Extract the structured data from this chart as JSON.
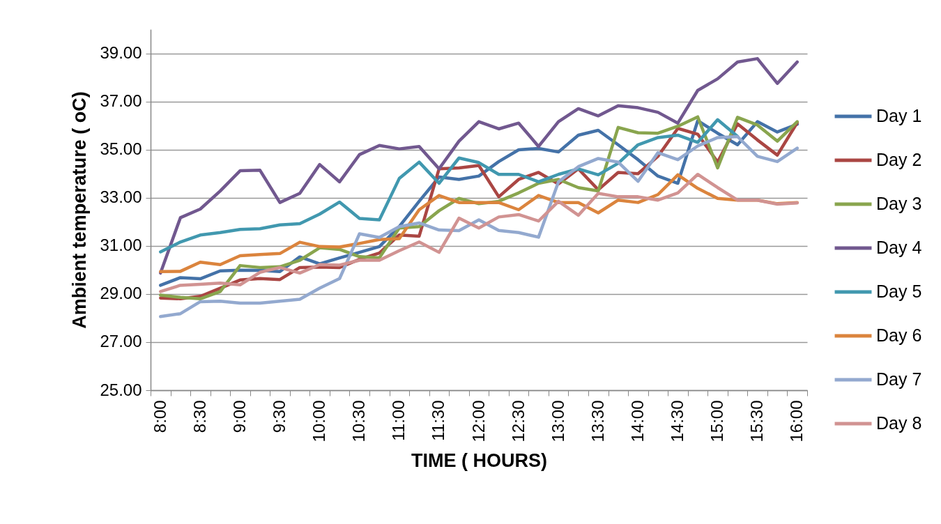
{
  "chart_data": {
    "type": "line",
    "xlabel": "TIME ( HOURS)",
    "ylabel": "Ambient temperature ( oC)",
    "categories": [
      "8:00",
      null,
      "8:30",
      null,
      "9:00",
      null,
      "9:30",
      null,
      "10:00",
      null,
      "10:30",
      null,
      "11:00",
      null,
      "11:30",
      null,
      "12:00",
      null,
      "12:30",
      null,
      "13:00",
      null,
      "13:30",
      null,
      "14:00",
      null,
      "14:30",
      null,
      "15:00",
      null,
      "15:30",
      null,
      "16:00"
    ],
    "series": [
      {
        "name": "Day 1",
        "color": "#4472a8",
        "values": [
          29.36,
          29.68,
          29.63,
          29.96,
          29.99,
          29.98,
          29.93,
          30.54,
          30.25,
          30.5,
          30.73,
          30.97,
          31.8,
          32.85,
          33.86,
          33.76,
          33.9,
          34.5,
          34.99,
          35.05,
          34.9,
          35.6,
          35.8,
          35.2,
          34.58,
          33.9,
          33.6,
          36.2,
          35.68,
          35.2,
          36.16,
          35.73,
          36.05
        ]
      },
      {
        "name": "Day 2",
        "color": "#aa4643",
        "values": [
          28.83,
          28.8,
          28.9,
          29.24,
          29.58,
          29.64,
          29.6,
          30.1,
          30.12,
          30.1,
          30.44,
          30.7,
          31.45,
          31.4,
          34.2,
          34.24,
          34.34,
          33.04,
          33.76,
          34.05,
          33.57,
          34.2,
          33.33,
          34.05,
          34.0,
          34.72,
          35.88,
          35.64,
          34.48,
          36.07,
          35.4,
          34.77,
          36.12
        ]
      },
      {
        "name": "Day 3",
        "color": "#89a54e",
        "values": [
          28.95,
          28.86,
          28.8,
          29.1,
          30.18,
          30.1,
          30.13,
          30.4,
          30.92,
          30.85,
          30.55,
          30.5,
          31.74,
          31.8,
          32.46,
          32.97,
          32.75,
          32.85,
          33.2,
          33.6,
          33.76,
          33.42,
          33.28,
          35.92,
          35.7,
          35.68,
          35.97,
          36.36,
          34.24,
          36.34,
          36.02,
          35.35,
          36.16
        ]
      },
      {
        "name": "Day 4",
        "color": "#71588f",
        "values": [
          29.87,
          32.17,
          32.53,
          33.28,
          34.12,
          34.14,
          32.8,
          33.18,
          34.38,
          33.66,
          34.79,
          35.17,
          35.03,
          35.13,
          34.2,
          35.35,
          36.16,
          35.86,
          36.1,
          35.13,
          36.16,
          36.7,
          36.4,
          36.82,
          36.74,
          36.55,
          36.1,
          37.46,
          37.94,
          38.64,
          38.78,
          37.75,
          38.64
        ]
      },
      {
        "name": "Day 5",
        "color": "#4198af",
        "values": [
          30.75,
          31.16,
          31.45,
          31.55,
          31.68,
          31.71,
          31.87,
          31.92,
          32.32,
          32.82,
          32.14,
          32.08,
          33.8,
          34.48,
          33.6,
          34.65,
          34.46,
          33.97,
          33.97,
          33.66,
          33.97,
          34.2,
          33.95,
          34.43,
          35.2,
          35.5,
          35.6,
          35.3,
          36.24,
          35.55,
          null,
          null,
          null
        ]
      },
      {
        "name": "Day 6",
        "color": "#db843d",
        "values": [
          29.93,
          29.94,
          30.32,
          30.22,
          30.59,
          30.64,
          30.68,
          31.15,
          30.97,
          30.95,
          31.1,
          31.26,
          31.3,
          32.5,
          33.09,
          32.8,
          32.8,
          32.8,
          32.5,
          33.09,
          32.8,
          32.8,
          32.37,
          32.9,
          32.8,
          33.13,
          33.95,
          33.39,
          32.97,
          32.9,
          32.9,
          32.75,
          32.8
        ]
      },
      {
        "name": "Day 7",
        "color": "#93a9cf",
        "values": [
          28.06,
          28.18,
          28.68,
          28.7,
          28.62,
          28.62,
          28.7,
          28.78,
          29.24,
          29.64,
          31.5,
          31.35,
          31.8,
          31.95,
          31.66,
          31.63,
          32.08,
          31.64,
          31.55,
          31.36,
          33.66,
          34.29,
          34.63,
          34.48,
          33.68,
          34.87,
          34.58,
          35.15,
          35.5,
          35.54,
          34.72,
          34.5,
          35.06
        ]
      },
      {
        "name": "Day 8",
        "color": "#d19392",
        "values": [
          29.1,
          29.36,
          29.4,
          29.45,
          29.38,
          29.9,
          30.1,
          29.87,
          30.22,
          30.2,
          30.4,
          30.4,
          30.8,
          31.16,
          30.73,
          32.15,
          31.74,
          32.2,
          32.3,
          32.03,
          32.85,
          32.27,
          33.18,
          33.04,
          33.04,
          32.9,
          33.2,
          33.97,
          33.42,
          32.9,
          32.9,
          32.73,
          32.78
        ]
      }
    ],
    "ylim": [
      25,
      40
    ],
    "yticks": [
      {
        "value": 25,
        "label": "25.00"
      },
      {
        "value": 27,
        "label": "27.00"
      },
      {
        "value": 29,
        "label": "29.00"
      },
      {
        "value": 31,
        "label": "31.00"
      },
      {
        "value": 33,
        "label": "33.00"
      },
      {
        "value": 35,
        "label": "35.00"
      },
      {
        "value": 37,
        "label": "37.00"
      },
      {
        "value": 39,
        "label": "39.00"
      }
    ],
    "grid": "y",
    "legend": "right",
    "line_style": "solid"
  }
}
